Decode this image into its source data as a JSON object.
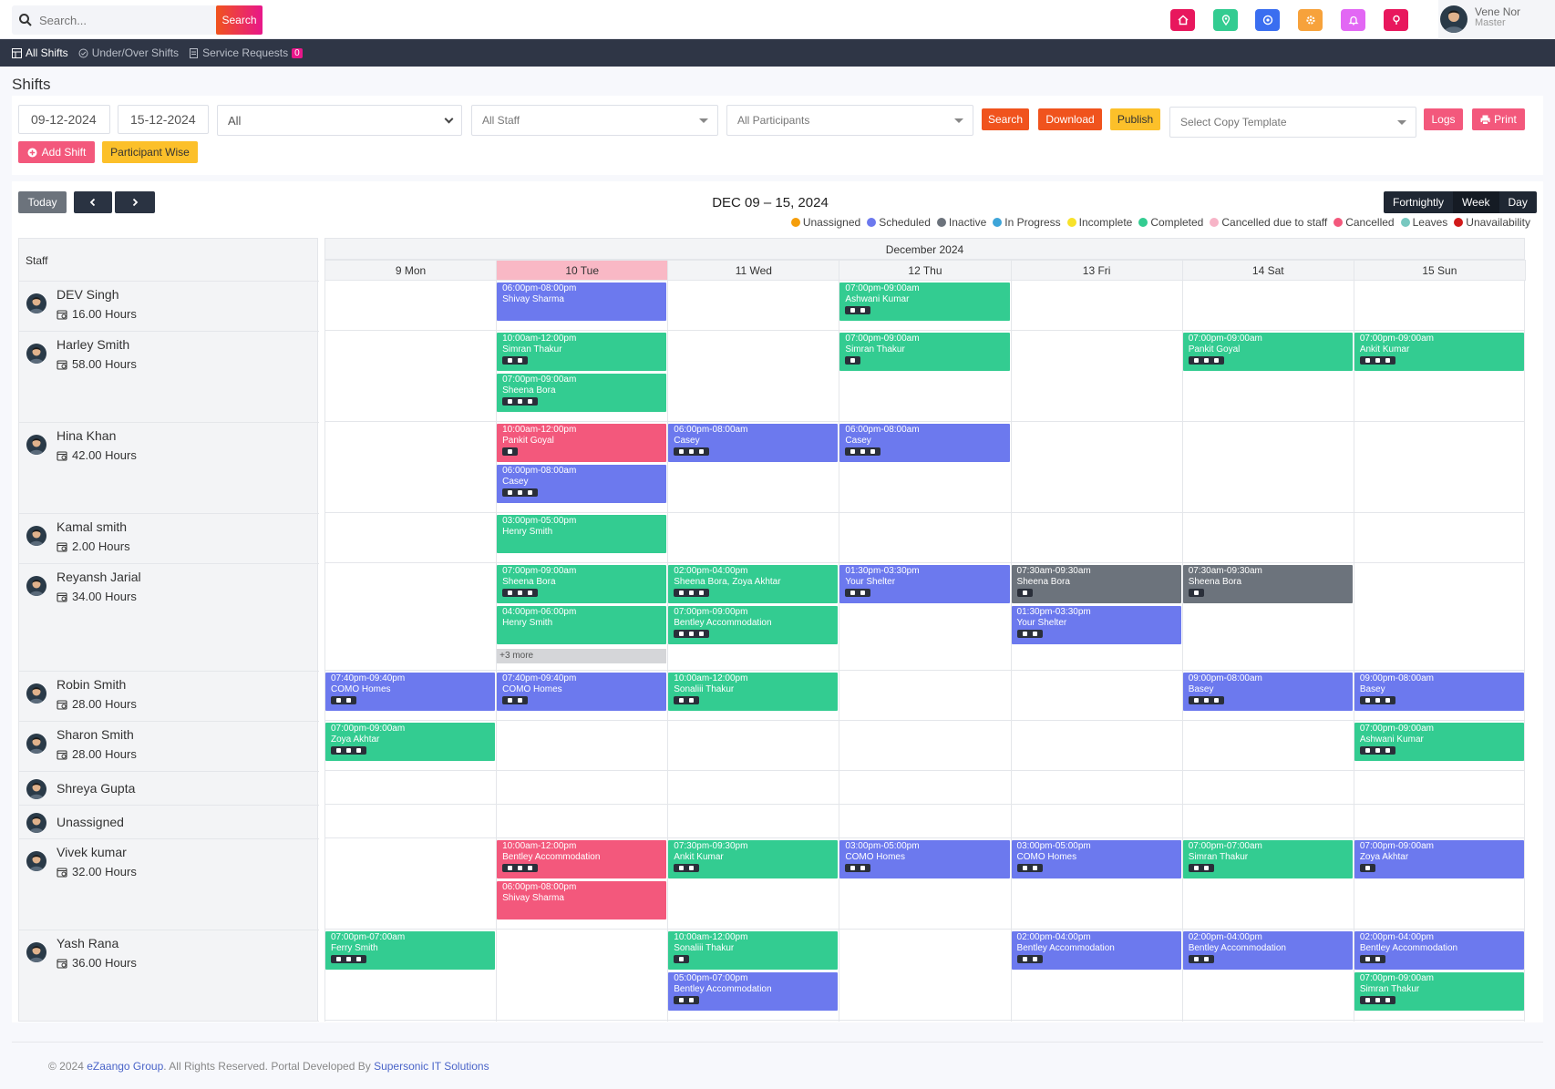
{
  "colors": {
    "scheduled": "#6c79ee",
    "completed": "#33cc91",
    "cancelled": "#f3587c",
    "inactive": "#6c737c",
    "unassigned": "#f59e0b",
    "in_progress": "#3ea5d9",
    "incomplete": "#f8e22a",
    "cancelled_staff": "#f7b4c7",
    "leaves": "#78c8c0",
    "unavailability": "#d11a1a"
  },
  "header": {
    "search_placeholder": "Search...",
    "search_button": "Search",
    "icons": [
      "home-icon",
      "location-icon",
      "settings-icon",
      "gear-icon",
      "bell-icon",
      "pin-icon"
    ],
    "user_name": "Vene Nor",
    "user_role": "Master"
  },
  "nav": {
    "all_shifts": "All Shifts",
    "under_over": "Under/Over Shifts",
    "service_requests": "Service Requests",
    "service_count": "0"
  },
  "page_title": "Shifts",
  "filters": {
    "date_from": "09-12-2024",
    "date_to": "15-12-2024",
    "type": "All",
    "staff": "All Staff",
    "participants": "All Participants",
    "search": "Search",
    "download": "Download",
    "publish": "Publish",
    "copy_template": "Select Copy Template",
    "logs": "Logs",
    "print": "Print",
    "add_shift": "Add Shift",
    "participant_wise": "Participant Wise"
  },
  "calendar": {
    "today_btn": "Today",
    "title": "DEC 09 – 15, 2024",
    "views": [
      "Fortnightly",
      "Week",
      "Day"
    ],
    "active_view": "Week",
    "month": "December 2024",
    "staff_header": "Staff",
    "days": [
      "9 Mon",
      "10 Tue",
      "11 Wed",
      "12 Thu",
      "13 Fri",
      "14 Sat",
      "15 Sun"
    ],
    "today_index": 1,
    "legend": [
      {
        "label": "Unassigned",
        "color": "#f59e0b"
      },
      {
        "label": "Scheduled",
        "color": "#6c79ee"
      },
      {
        "label": "Inactive",
        "color": "#6c737c"
      },
      {
        "label": "In Progress",
        "color": "#3ea5d9"
      },
      {
        "label": "Incomplete",
        "color": "#f8e22a"
      },
      {
        "label": "Completed",
        "color": "#33cc91"
      },
      {
        "label": "Cancelled due to staff",
        "color": "#f7b4c7"
      },
      {
        "label": "Cancelled",
        "color": "#f3587c"
      },
      {
        "label": "Leaves",
        "color": "#78c8c0"
      },
      {
        "label": "Unavailability",
        "color": "#d11a1a"
      }
    ],
    "staff": [
      {
        "name": "DEV Singh",
        "hours": "16.00 Hours",
        "rows": 1
      },
      {
        "name": "Harley Smith",
        "hours": "58.00 Hours",
        "rows": 2
      },
      {
        "name": "Hina Khan",
        "hours": "42.00 Hours",
        "rows": 2
      },
      {
        "name": "Kamal smith",
        "hours": "2.00 Hours",
        "rows": 1
      },
      {
        "name": "Reyansh Jarial",
        "hours": "34.00 Hours",
        "rows": 2,
        "more": true
      },
      {
        "name": "Robin Smith",
        "hours": "28.00 Hours",
        "rows": 1
      },
      {
        "name": "Sharon Smith",
        "hours": "28.00 Hours",
        "rows": 1
      },
      {
        "name": "Shreya Gupta",
        "hours": "",
        "rows": 0
      },
      {
        "name": "Unassigned",
        "hours": "",
        "rows": 0
      },
      {
        "name": "Vivek kumar",
        "hours": "32.00 Hours",
        "rows": 2
      },
      {
        "name": "Yash Rana",
        "hours": "36.00 Hours",
        "rows": 2
      }
    ],
    "more_label": "+3 more",
    "shifts": [
      {
        "staff": 0,
        "day": 1,
        "slot": 0,
        "status": "scheduled",
        "time": "06:00pm-08:00pm",
        "who": "Shivay Sharma",
        "icons": 0
      },
      {
        "staff": 0,
        "day": 3,
        "slot": 0,
        "status": "completed",
        "time": "07:00pm-09:00am",
        "who": "Ashwani Kumar",
        "icons": 2
      },
      {
        "staff": 1,
        "day": 1,
        "slot": 0,
        "status": "completed",
        "time": "10:00am-12:00pm",
        "who": "Simran Thakur",
        "icons": 2
      },
      {
        "staff": 1,
        "day": 1,
        "slot": 1,
        "status": "completed",
        "time": "07:00pm-09:00am",
        "who": "Sheena Bora",
        "icons": 3
      },
      {
        "staff": 1,
        "day": 3,
        "slot": 0,
        "status": "completed",
        "time": "07:00pm-09:00am",
        "who": "Simran Thakur",
        "icons": 1
      },
      {
        "staff": 1,
        "day": 5,
        "slot": 0,
        "status": "completed",
        "time": "07:00pm-09:00am",
        "who": "Pankit Goyal",
        "icons": 3
      },
      {
        "staff": 1,
        "day": 6,
        "slot": 0,
        "status": "completed",
        "time": "07:00pm-09:00am",
        "who": "Ankit Kumar",
        "icons": 3
      },
      {
        "staff": 2,
        "day": 1,
        "slot": 0,
        "status": "cancelled",
        "time": "10:00am-12:00pm",
        "who": "Pankit Goyal",
        "icons": 1
      },
      {
        "staff": 2,
        "day": 1,
        "slot": 1,
        "status": "scheduled",
        "time": "06:00pm-08:00am",
        "who": "Casey",
        "icons": 3
      },
      {
        "staff": 2,
        "day": 2,
        "slot": 0,
        "status": "scheduled",
        "time": "06:00pm-08:00am",
        "who": "Casey",
        "icons": 3
      },
      {
        "staff": 2,
        "day": 3,
        "slot": 0,
        "status": "scheduled",
        "time": "06:00pm-08:00am",
        "who": "Casey",
        "icons": 3
      },
      {
        "staff": 3,
        "day": 1,
        "slot": 0,
        "status": "completed",
        "time": "03:00pm-05:00pm",
        "who": "Henry Smith",
        "icons": 0
      },
      {
        "staff": 4,
        "day": 1,
        "slot": 0,
        "status": "completed",
        "time": "07:00pm-09:00am",
        "who": "Sheena Bora",
        "icons": 3
      },
      {
        "staff": 4,
        "day": 1,
        "slot": 1,
        "status": "completed",
        "time": "04:00pm-06:00pm",
        "who": "Henry Smith",
        "icons": 0
      },
      {
        "staff": 4,
        "day": 2,
        "slot": 0,
        "status": "completed",
        "time": "02:00pm-04:00pm",
        "who": "Sheena Bora, Zoya Akhtar",
        "icons": 3
      },
      {
        "staff": 4,
        "day": 2,
        "slot": 1,
        "status": "completed",
        "time": "07:00pm-09:00pm",
        "who": "Bentley Accommodation",
        "icons": 3
      },
      {
        "staff": 4,
        "day": 3,
        "slot": 0,
        "status": "scheduled",
        "time": "01:30pm-03:30pm",
        "who": "Your Shelter",
        "icons": 2
      },
      {
        "staff": 4,
        "day": 4,
        "slot": 0,
        "status": "inactive",
        "time": "07:30am-09:30am",
        "who": "Sheena Bora",
        "icons": 1
      },
      {
        "staff": 4,
        "day": 4,
        "slot": 1,
        "status": "scheduled",
        "time": "01:30pm-03:30pm",
        "who": "Your Shelter",
        "icons": 2
      },
      {
        "staff": 4,
        "day": 5,
        "slot": 0,
        "status": "inactive",
        "time": "07:30am-09:30am",
        "who": "Sheena Bora",
        "icons": 1
      },
      {
        "staff": 5,
        "day": 0,
        "slot": 0,
        "status": "scheduled",
        "time": "07:40pm-09:40pm",
        "who": "COMO Homes",
        "icons": 2
      },
      {
        "staff": 5,
        "day": 1,
        "slot": 0,
        "status": "scheduled",
        "time": "07:40pm-09:40pm",
        "who": "COMO Homes",
        "icons": 2
      },
      {
        "staff": 5,
        "day": 2,
        "slot": 0,
        "status": "completed",
        "time": "10:00am-12:00pm",
        "who": "Sonaliii Thakur",
        "icons": 2
      },
      {
        "staff": 5,
        "day": 5,
        "slot": 0,
        "status": "scheduled",
        "time": "09:00pm-08:00am",
        "who": "Basey",
        "icons": 3
      },
      {
        "staff": 5,
        "day": 6,
        "slot": 0,
        "status": "scheduled",
        "time": "09:00pm-08:00am",
        "who": "Basey",
        "icons": 3
      },
      {
        "staff": 6,
        "day": 0,
        "slot": 0,
        "status": "completed",
        "time": "07:00pm-09:00am",
        "who": "Zoya Akhtar",
        "icons": 3
      },
      {
        "staff": 6,
        "day": 6,
        "slot": 0,
        "status": "completed",
        "time": "07:00pm-09:00am",
        "who": "Ashwani Kumar",
        "icons": 3
      },
      {
        "staff": 9,
        "day": 1,
        "slot": 0,
        "status": "cancelled",
        "time": "10:00am-12:00pm",
        "who": "Bentley Accommodation",
        "icons": 3
      },
      {
        "staff": 9,
        "day": 1,
        "slot": 1,
        "status": "cancelled",
        "time": "06:00pm-08:00pm",
        "who": "Shivay Sharma",
        "icons": 0
      },
      {
        "staff": 9,
        "day": 2,
        "slot": 0,
        "status": "completed",
        "time": "07:30pm-09:30pm",
        "who": "Ankit Kumar",
        "icons": 2
      },
      {
        "staff": 9,
        "day": 3,
        "slot": 0,
        "status": "scheduled",
        "time": "03:00pm-05:00pm",
        "who": "COMO Homes",
        "icons": 2
      },
      {
        "staff": 9,
        "day": 4,
        "slot": 0,
        "status": "scheduled",
        "time": "03:00pm-05:00pm",
        "who": "COMO Homes",
        "icons": 2
      },
      {
        "staff": 9,
        "day": 5,
        "slot": 0,
        "status": "completed",
        "time": "07:00pm-07:00am",
        "who": "Simran Thakur",
        "icons": 2
      },
      {
        "staff": 9,
        "day": 6,
        "slot": 0,
        "status": "scheduled",
        "time": "07:00pm-09:00am",
        "who": "Zoya Akhtar",
        "icons": 1
      },
      {
        "staff": 10,
        "day": 0,
        "slot": 0,
        "status": "completed",
        "time": "07:00pm-07:00am",
        "who": "Ferry Smith",
        "icons": 3
      },
      {
        "staff": 10,
        "day": 2,
        "slot": 0,
        "status": "completed",
        "time": "10:00am-12:00pm",
        "who": "Sonaliii Thakur",
        "icons": 1
      },
      {
        "staff": 10,
        "day": 2,
        "slot": 1,
        "status": "scheduled",
        "time": "05:00pm-07:00pm",
        "who": "Bentley Accommodation",
        "icons": 2
      },
      {
        "staff": 10,
        "day": 4,
        "slot": 0,
        "status": "scheduled",
        "time": "02:00pm-04:00pm",
        "who": "Bentley Accommodation",
        "icons": 2
      },
      {
        "staff": 10,
        "day": 5,
        "slot": 0,
        "status": "scheduled",
        "time": "02:00pm-04:00pm",
        "who": "Bentley Accommodation",
        "icons": 2
      },
      {
        "staff": 10,
        "day": 6,
        "slot": 0,
        "status": "scheduled",
        "time": "02:00pm-04:00pm",
        "who": "Bentley Accommodation",
        "icons": 2
      },
      {
        "staff": 10,
        "day": 6,
        "slot": 1,
        "status": "completed",
        "time": "07:00pm-09:00am",
        "who": "Simran Thakur",
        "icons": 3
      }
    ]
  },
  "footer": {
    "prefix": "© 2024",
    "company": "eZaango Group",
    "middle": ". All Rights Reserved. Portal Developed By",
    "developer": "Supersonic IT Solutions"
  }
}
